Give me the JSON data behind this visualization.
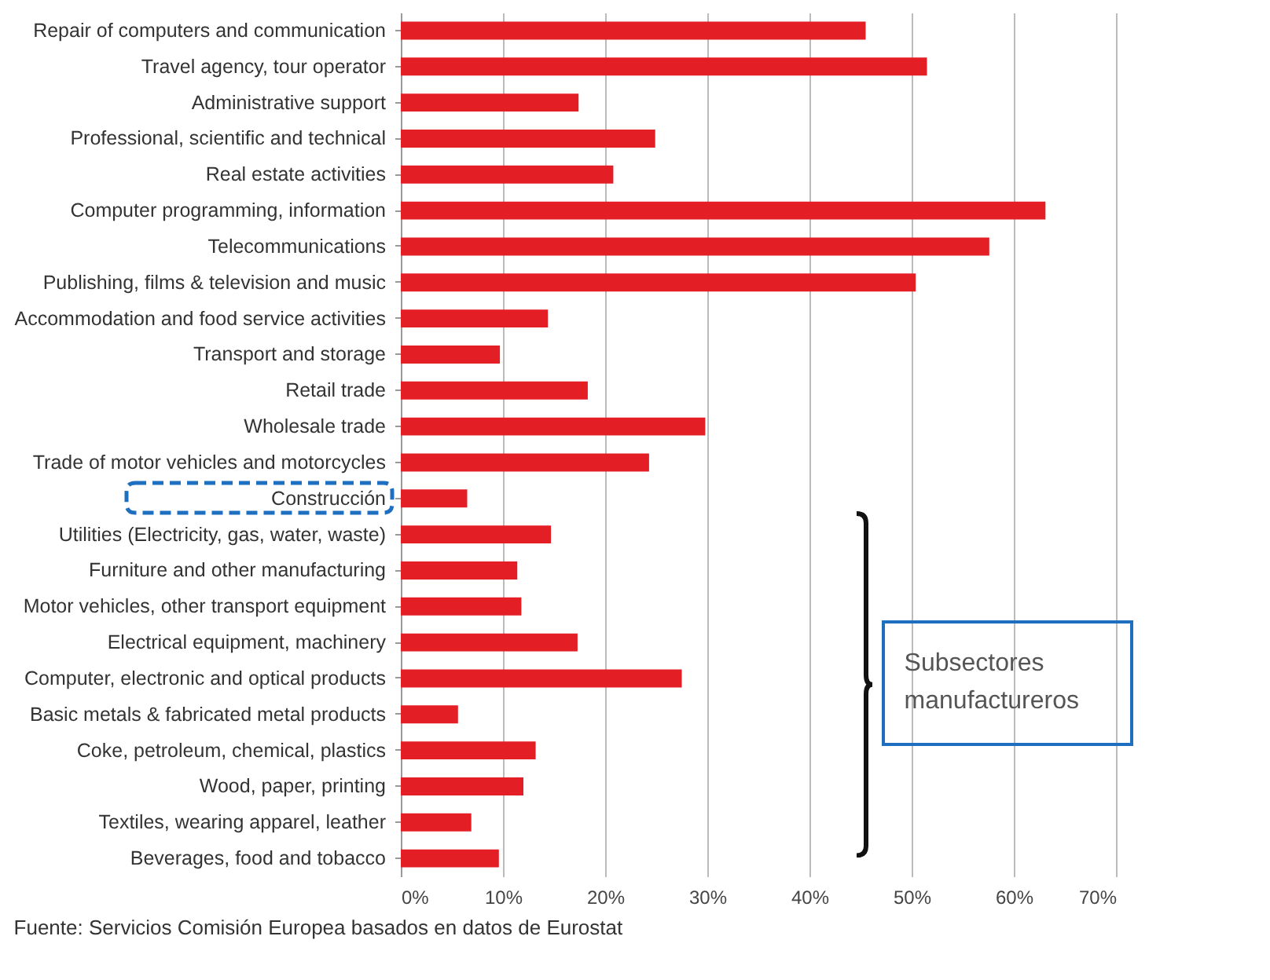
{
  "chart_data": {
    "type": "bar",
    "orientation": "horizontal",
    "categories": [
      "Repair of computers and communication",
      "Travel agency, tour operator",
      "Administrative support",
      "Professional, scientific and technical",
      "Real estate activities",
      "Computer programming, information",
      "Telecommunications",
      "Publishing, films & television and music",
      "Accommodation and food service activities",
      "Transport and storage",
      "Retail trade",
      "Wholesale trade",
      "Trade of motor vehicles and motorcycles",
      "Construcción",
      "Utilities (Electricity, gas, water, waste)",
      "Furniture and other manufacturing",
      "Motor vehicles, other transport equipment",
      "Electrical equipment, machinery",
      "Computer, electronic and optical products",
      "Basic metals & fabricated metal products",
      "Coke, petroleum, chemical, plastics",
      "Wood, paper, printing",
      "Textiles, wearing apparel, leather",
      "Beverages, food and tobacco"
    ],
    "values": [
      45.5,
      51.5,
      17.4,
      24.9,
      20.8,
      63.1,
      57.6,
      50.4,
      14.4,
      9.7,
      18.3,
      29.8,
      24.3,
      6.5,
      14.7,
      11.4,
      11.8,
      17.3,
      27.5,
      5.6,
      13.2,
      12.0,
      6.9,
      9.6
    ],
    "color": "#e31e24",
    "xlim": [
      0,
      70
    ],
    "xticks": [
      {
        "value": 0,
        "label": "0%"
      },
      {
        "value": 10,
        "label": "10%"
      },
      {
        "value": 20,
        "label": "20%"
      },
      {
        "value": 30,
        "label": "30%"
      },
      {
        "value": 40,
        "label": "40%"
      },
      {
        "value": 50,
        "label": "50%"
      },
      {
        "value": 60,
        "label": "60%"
      },
      {
        "value": 70,
        "label": "70%"
      }
    ],
    "grid": "x",
    "annotations": [
      "Subsectores manufactureros",
      "Fuente: Servicios Comisión Europea basados en datos de Eurostat"
    ]
  }
}
